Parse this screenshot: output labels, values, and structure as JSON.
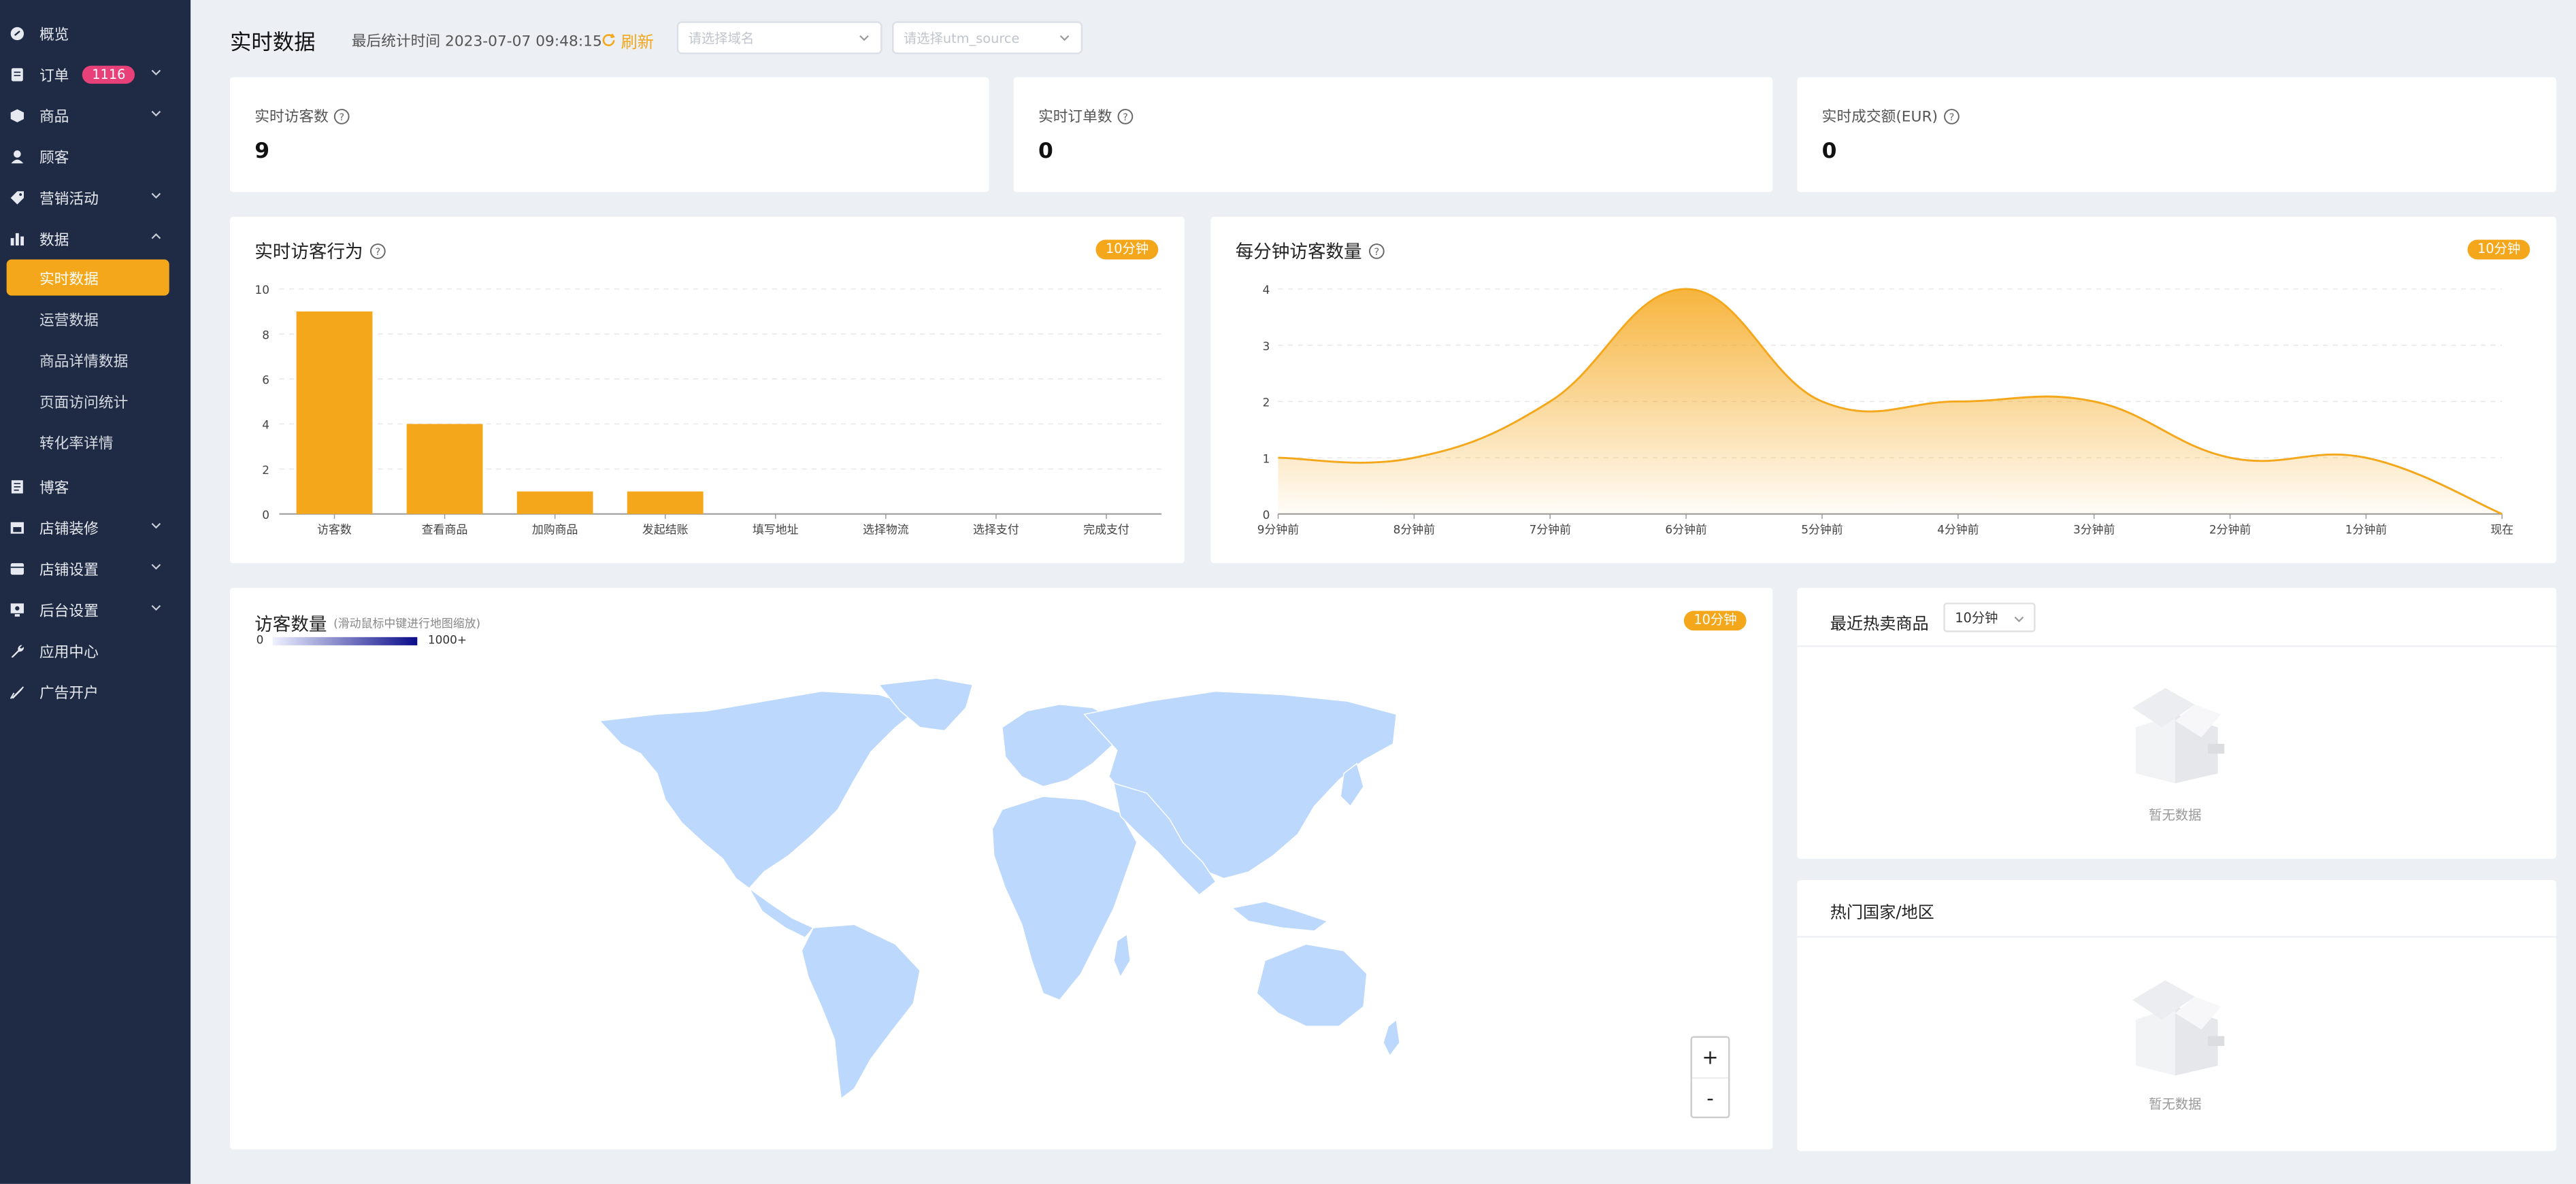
{
  "sidebar": {
    "items": [
      {
        "label": "概览",
        "icon": "dashboard-icon",
        "name": "overview"
      },
      {
        "label": "订单",
        "icon": "order-icon",
        "name": "orders",
        "badge": "1116",
        "chevron": "down"
      },
      {
        "label": "商品",
        "icon": "product-box-icon",
        "name": "products",
        "chevron": "down"
      },
      {
        "label": "顾客",
        "icon": "user-icon",
        "name": "customers"
      },
      {
        "label": "营销活动",
        "icon": "tag-icon",
        "name": "marketing",
        "chevron": "down"
      },
      {
        "label": "数据",
        "icon": "bar-chart-icon",
        "name": "data",
        "chevron": "up"
      },
      {
        "label": "博客",
        "icon": "blog-icon",
        "name": "blog"
      },
      {
        "label": "店铺装修",
        "icon": "store-decor-icon",
        "name": "store-design",
        "chevron": "down"
      },
      {
        "label": "店铺设置",
        "icon": "store-settings-icon",
        "name": "store-settings",
        "chevron": "down"
      },
      {
        "label": "后台设置",
        "icon": "admin-settings-icon",
        "name": "admin-settings",
        "chevron": "down"
      },
      {
        "label": "应用中心",
        "icon": "wrench-icon",
        "name": "app-center"
      },
      {
        "label": "广告开户",
        "icon": "ad-pen-icon",
        "name": "ad-account"
      }
    ],
    "sub_items": [
      {
        "label": "实时数据",
        "active": true
      },
      {
        "label": "运营数据"
      },
      {
        "label": "商品详情数据"
      },
      {
        "label": "页面访问统计"
      },
      {
        "label": "转化率详情"
      }
    ]
  },
  "header": {
    "title": "实时数据",
    "last_time": "最后统计时间 2023-07-07 09:48:15",
    "refresh_label": "刷新",
    "domain_select_placeholder": "请选择域名",
    "utm_select_placeholder": "请选择utm_source"
  },
  "stats": [
    {
      "label": "实时访客数",
      "value": "9"
    },
    {
      "label": "实时订单数",
      "value": "0"
    },
    {
      "label": "实时成交额(EUR)",
      "value": "0"
    }
  ],
  "behavior_card": {
    "title": "实时访客行为",
    "tag": "10分钟"
  },
  "per_minute_card": {
    "title": "每分钟访客数量",
    "tag": "10分钟"
  },
  "map_card": {
    "title": "访客数量",
    "hint": "(滑动鼠标中键进行地图缩放)",
    "tag": "10分钟",
    "legend_min": "0",
    "legend_max": "1000+",
    "zoom_in": "+",
    "zoom_out": "-",
    "land_color": "#bcd8fd"
  },
  "hot_products": {
    "title": "最近热卖商品",
    "select_value": "10分钟",
    "empty_text": "暂无数据"
  },
  "hot_countries": {
    "title": "热门国家/地区",
    "empty_text": "暂无数据"
  },
  "colors": {
    "accent": "#f5a71b",
    "sidebar_bg": "#1f2b44",
    "badge": "#e8417a"
  },
  "chart_data": [
    {
      "type": "bar",
      "categories": [
        "访客数",
        "查看商品",
        "加购商品",
        "发起结账",
        "填写地址",
        "选择物流",
        "选择支付",
        "完成支付"
      ],
      "values": [
        9,
        4,
        1,
        1,
        0,
        0,
        0,
        0
      ],
      "yticks": [
        0,
        2,
        4,
        6,
        8,
        10
      ],
      "ylim": [
        0,
        10
      ],
      "grid": true,
      "color": "#f5a71b"
    },
    {
      "type": "area",
      "categories": [
        "9分钟前",
        "8分钟前",
        "7分钟前",
        "6分钟前",
        "5分钟前",
        "4分钟前",
        "3分钟前",
        "2分钟前",
        "1分钟前",
        "现在"
      ],
      "values": [
        1,
        1,
        2,
        4,
        2,
        2,
        2,
        1,
        1,
        0
      ],
      "yticks": [
        0,
        1,
        2,
        3,
        4
      ],
      "ylim": [
        0,
        4
      ],
      "grid": true,
      "color": "#f5a71b"
    }
  ]
}
